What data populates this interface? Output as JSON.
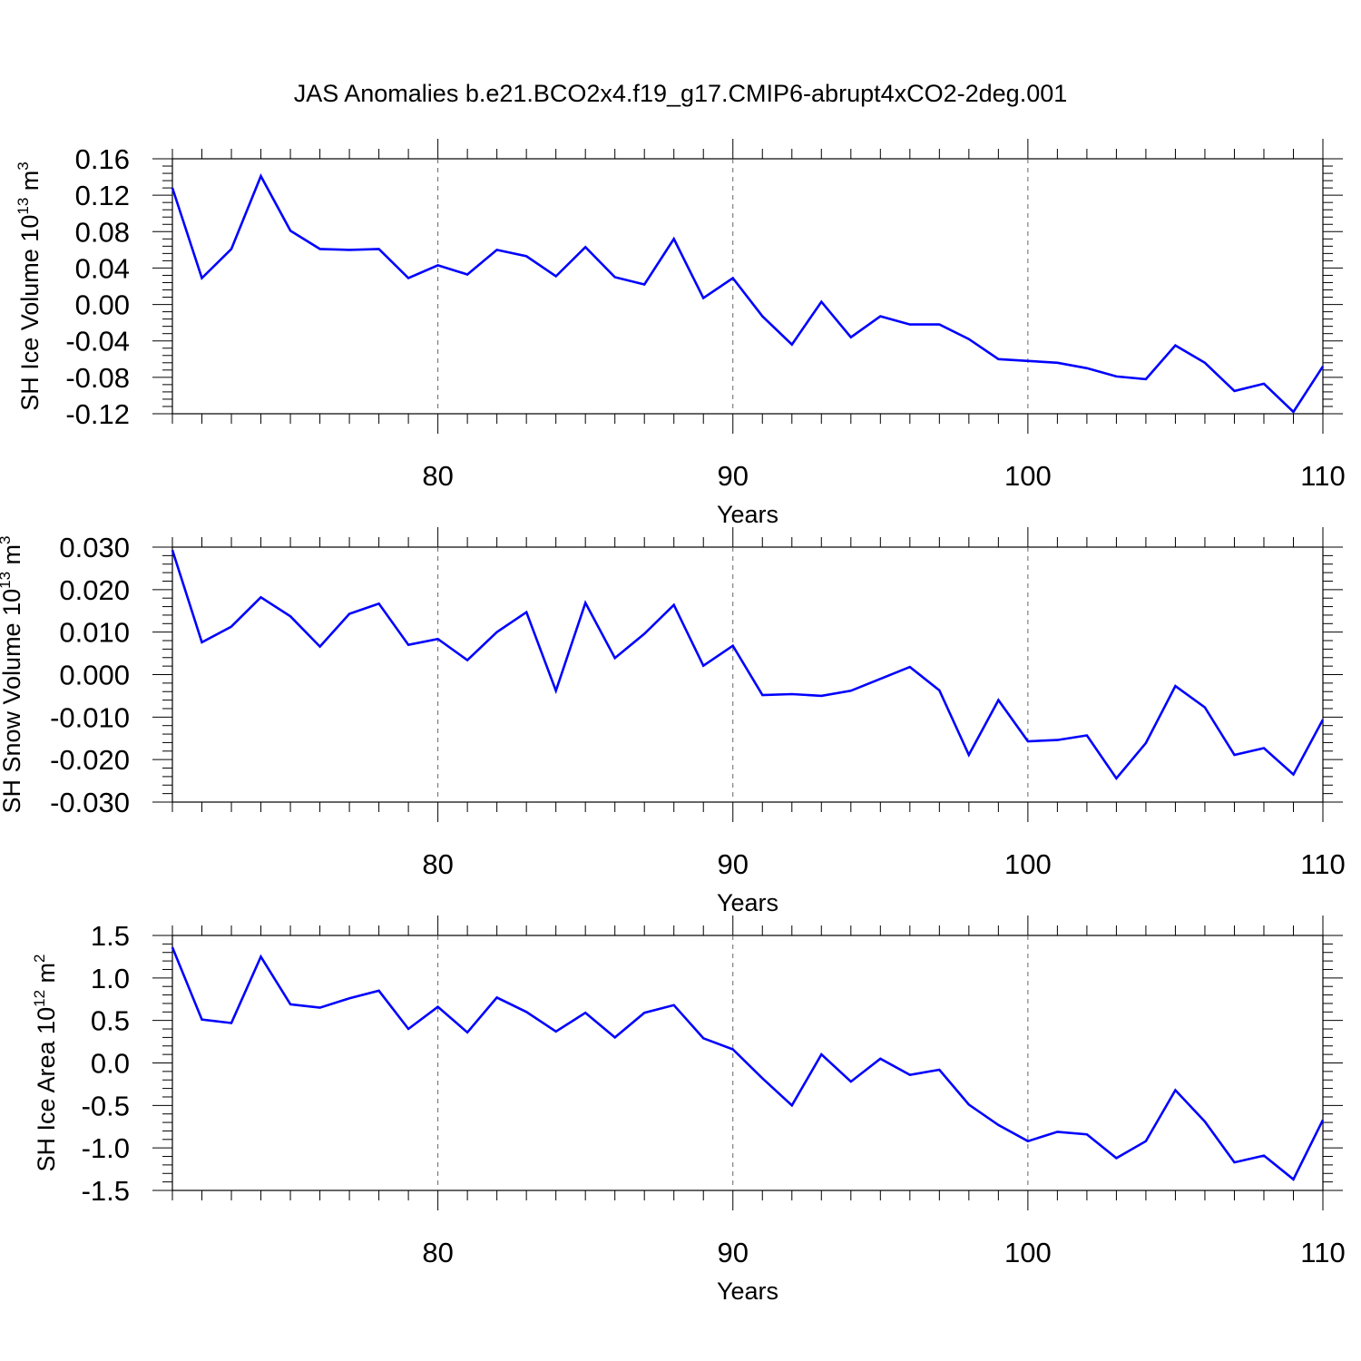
{
  "title": "JAS Anomalies b.e21.BCO2x4.f19_g17.CMIP6-abrupt4xCO2-2deg.001",
  "line_color": "#0000ff",
  "chart_data": [
    {
      "type": "line",
      "ylabel": "SH Ice Volume",
      "ylabel_units": {
        "base": "10",
        "exp": "13",
        "unit": "m",
        "unit_exp": "3"
      },
      "xlabel": "Years",
      "xlim": [
        71,
        110
      ],
      "ylim": [
        -0.12,
        0.16
      ],
      "xticks": [
        "80",
        "90",
        "100",
        "110"
      ],
      "yticks": [
        "0.16",
        "0.12",
        "0.08",
        "0.04",
        "0.00",
        "-0.04",
        "-0.08",
        "-0.12"
      ],
      "grid": "dashed vertical at major x ticks",
      "series": [
        {
          "x": [
            71,
            72,
            73,
            74,
            75,
            76,
            77,
            78,
            79,
            80,
            81,
            82,
            83,
            84,
            85,
            86,
            87,
            88,
            89,
            90,
            91,
            92,
            93,
            94,
            95,
            96,
            97,
            98,
            99,
            100,
            101,
            102,
            103,
            104,
            105,
            106,
            107,
            108,
            109,
            110
          ],
          "values": [
            0.128,
            0.029,
            0.061,
            0.141,
            0.081,
            0.061,
            0.06,
            0.061,
            0.029,
            0.043,
            0.033,
            0.06,
            0.053,
            0.031,
            0.063,
            0.03,
            0.022,
            0.072,
            0.007,
            0.029,
            -0.013,
            -0.044,
            0.003,
            -0.036,
            -0.013,
            -0.022,
            -0.022,
            -0.038,
            -0.06,
            -0.062,
            -0.064,
            -0.07,
            -0.079,
            -0.082,
            -0.045,
            -0.064,
            -0.095,
            -0.087,
            -0.118,
            -0.068
          ]
        }
      ]
    },
    {
      "type": "line",
      "ylabel": "SH Snow Volume",
      "ylabel_units": {
        "base": "10",
        "exp": "13",
        "unit": "m",
        "unit_exp": "3"
      },
      "xlabel": "Years",
      "xlim": [
        71,
        110
      ],
      "ylim": [
        -0.03,
        0.03
      ],
      "xticks": [
        "80",
        "90",
        "100",
        "110"
      ],
      "yticks": [
        "0.030",
        "0.020",
        "0.010",
        "0.000",
        "-0.010",
        "-0.020",
        "-0.030"
      ],
      "grid": "dashed vertical at major x ticks",
      "series": [
        {
          "x": [
            71,
            72,
            73,
            74,
            75,
            76,
            77,
            78,
            79,
            80,
            81,
            82,
            83,
            84,
            85,
            86,
            87,
            88,
            89,
            90,
            91,
            92,
            93,
            94,
            95,
            96,
            97,
            98,
            99,
            100,
            101,
            102,
            103,
            104,
            105,
            106,
            107,
            108,
            109,
            110
          ],
          "values": [
            0.0293,
            0.0076,
            0.0113,
            0.0182,
            0.0137,
            0.0066,
            0.0143,
            0.0167,
            0.007,
            0.0084,
            0.0034,
            0.01,
            0.0147,
            -0.0038,
            0.0169,
            0.0039,
            0.0096,
            0.0164,
            0.0021,
            0.0068,
            -0.0048,
            -0.0046,
            -0.005,
            -0.0038,
            -0.001,
            0.0018,
            -0.0037,
            -0.0189,
            -0.006,
            -0.0157,
            -0.0154,
            -0.0143,
            -0.0244,
            -0.0161,
            -0.0027,
            -0.0077,
            -0.0189,
            -0.0173,
            -0.0235,
            -0.0106
          ]
        }
      ]
    },
    {
      "type": "line",
      "ylabel": "SH Ice Area",
      "ylabel_units": {
        "base": "10",
        "exp": "12",
        "unit": "m",
        "unit_exp": "2"
      },
      "xlabel": "Years",
      "xlim": [
        71,
        110
      ],
      "ylim": [
        -1.5,
        1.5
      ],
      "xticks": [
        "80",
        "90",
        "100",
        "110"
      ],
      "yticks": [
        "1.5",
        "1.0",
        "0.5",
        "0.0",
        "-0.5",
        "-1.0",
        "-1.5"
      ],
      "grid": "dashed vertical at major x ticks",
      "series": [
        {
          "x": [
            71,
            72,
            73,
            74,
            75,
            76,
            77,
            78,
            79,
            80,
            81,
            82,
            83,
            84,
            85,
            86,
            87,
            88,
            89,
            90,
            91,
            92,
            93,
            94,
            95,
            96,
            97,
            98,
            99,
            100,
            101,
            102,
            103,
            104,
            105,
            106,
            107,
            108,
            109,
            110
          ],
          "values": [
            1.36,
            0.51,
            0.47,
            1.25,
            0.69,
            0.65,
            0.76,
            0.85,
            0.4,
            0.66,
            0.36,
            0.77,
            0.6,
            0.37,
            0.59,
            0.3,
            0.59,
            0.68,
            0.29,
            0.16,
            -0.18,
            -0.5,
            0.1,
            -0.22,
            0.05,
            -0.14,
            -0.08,
            -0.49,
            -0.73,
            -0.92,
            -0.81,
            -0.84,
            -1.12,
            -0.92,
            -0.32,
            -0.69,
            -1.17,
            -1.09,
            -1.37,
            -0.67
          ]
        }
      ]
    }
  ]
}
